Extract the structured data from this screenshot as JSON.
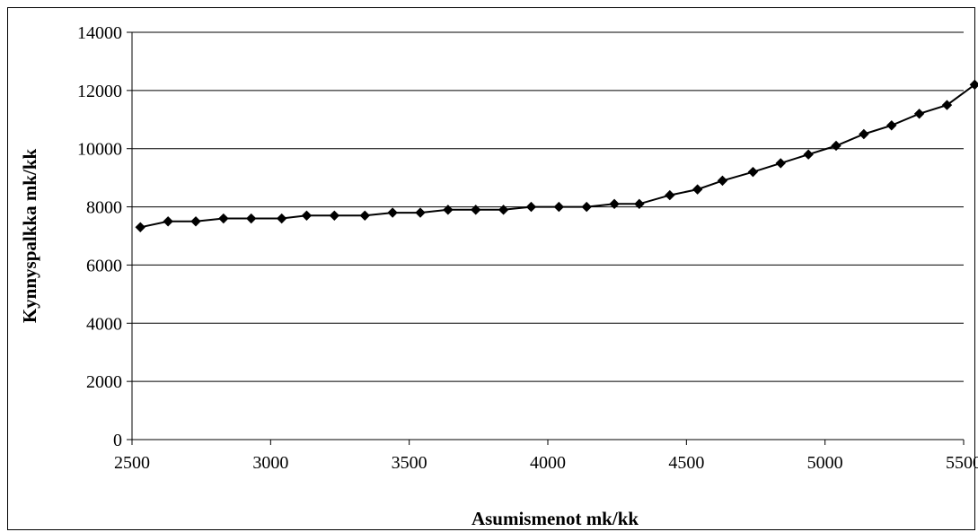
{
  "chart_data": {
    "type": "line",
    "title": "",
    "xlabel": "Asumismenot mk/kk",
    "ylabel": "Kynnyspalkka mk/kk",
    "xlim": [
      2500,
      5500
    ],
    "ylim": [
      0,
      14000
    ],
    "x_ticks": [
      2500,
      3000,
      3500,
      4000,
      4500,
      5000,
      5500
    ],
    "y_ticks": [
      0,
      2000,
      4000,
      6000,
      8000,
      10000,
      12000,
      14000
    ],
    "grid": "horizontal",
    "legend": "none",
    "marker": "diamond",
    "colors": {
      "line": "#000000",
      "grid": "#000000",
      "frame": "#000000"
    },
    "series": [
      {
        "x": [
          2530,
          2630,
          2730,
          2830,
          2930,
          3040,
          3130,
          3230,
          3340,
          3440,
          3540,
          3640,
          3740,
          3840,
          3940,
          4040,
          4140,
          4240,
          4330,
          4440,
          4540,
          4630,
          4740,
          4840,
          4940,
          5040,
          5140,
          5240,
          5340,
          5440,
          5540
        ],
        "y": [
          7300,
          7500,
          7500,
          7600,
          7600,
          7600,
          7700,
          7700,
          7700,
          7800,
          7800,
          7900,
          7900,
          7900,
          8000,
          8000,
          8000,
          8100,
          8100,
          8400,
          8600,
          8900,
          9200,
          9500,
          9800,
          10100,
          10500,
          10800,
          11200,
          11500,
          12200
        ]
      }
    ]
  }
}
